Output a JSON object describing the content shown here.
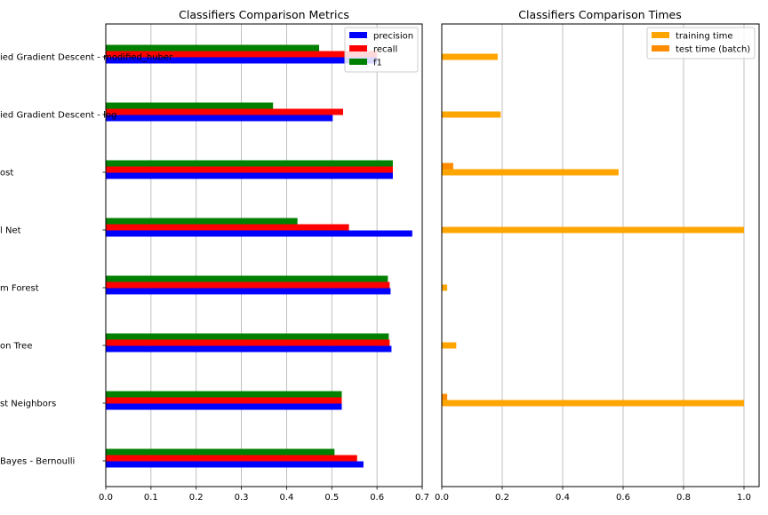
{
  "chart_data": [
    {
      "type": "bar",
      "orientation": "horizontal",
      "title": "Classifiers Comparison Metrics",
      "categories": [
        "ied Gradient Descent - modified_huber",
        "ied Gradient Descent - log",
        "ost",
        "l Net",
        "m Forest",
        "on Tree",
        "st Neighbors",
        " Bayes - Bernoulli"
      ],
      "series": [
        {
          "name": "precision",
          "color": "#0000ff",
          "values": [
            0.6,
            0.502,
            0.635,
            0.678,
            0.63,
            0.632,
            0.522,
            0.57
          ]
        },
        {
          "name": "recall",
          "color": "#ff0000",
          "values": [
            0.6,
            0.525,
            0.635,
            0.538,
            0.628,
            0.628,
            0.522,
            0.556
          ]
        },
        {
          "name": "f1",
          "color": "#008000",
          "values": [
            0.472,
            0.37,
            0.635,
            0.424,
            0.624,
            0.626,
            0.522,
            0.506
          ]
        }
      ],
      "xlim": [
        0,
        0.7
      ],
      "xticks": [
        "0.0",
        "0.1",
        "0.2",
        "0.3",
        "0.4",
        "0.5",
        "0.6",
        "0.7"
      ],
      "grid": "vertical",
      "legend_position": "top-right"
    },
    {
      "type": "bar",
      "orientation": "horizontal",
      "title": "Classifiers Comparison Times",
      "series": [
        {
          "name": "training time",
          "color": "#ffa500",
          "values": [
            0.185,
            0.195,
            0.585,
            1.0,
            0.018,
            0.048,
            1.0,
            0.0
          ]
        },
        {
          "name": "test time (batch)",
          "color": "#ff8c00",
          "values": [
            0.0,
            0.0,
            0.038,
            0.0,
            0.0,
            0.0,
            0.018,
            0.0
          ]
        }
      ],
      "xlim": [
        0,
        1.05
      ],
      "xticks": [
        "0.0",
        "0.2",
        "0.4",
        "0.6",
        "0.8",
        "1.0"
      ],
      "grid": "vertical",
      "legend_position": "top-right"
    }
  ]
}
